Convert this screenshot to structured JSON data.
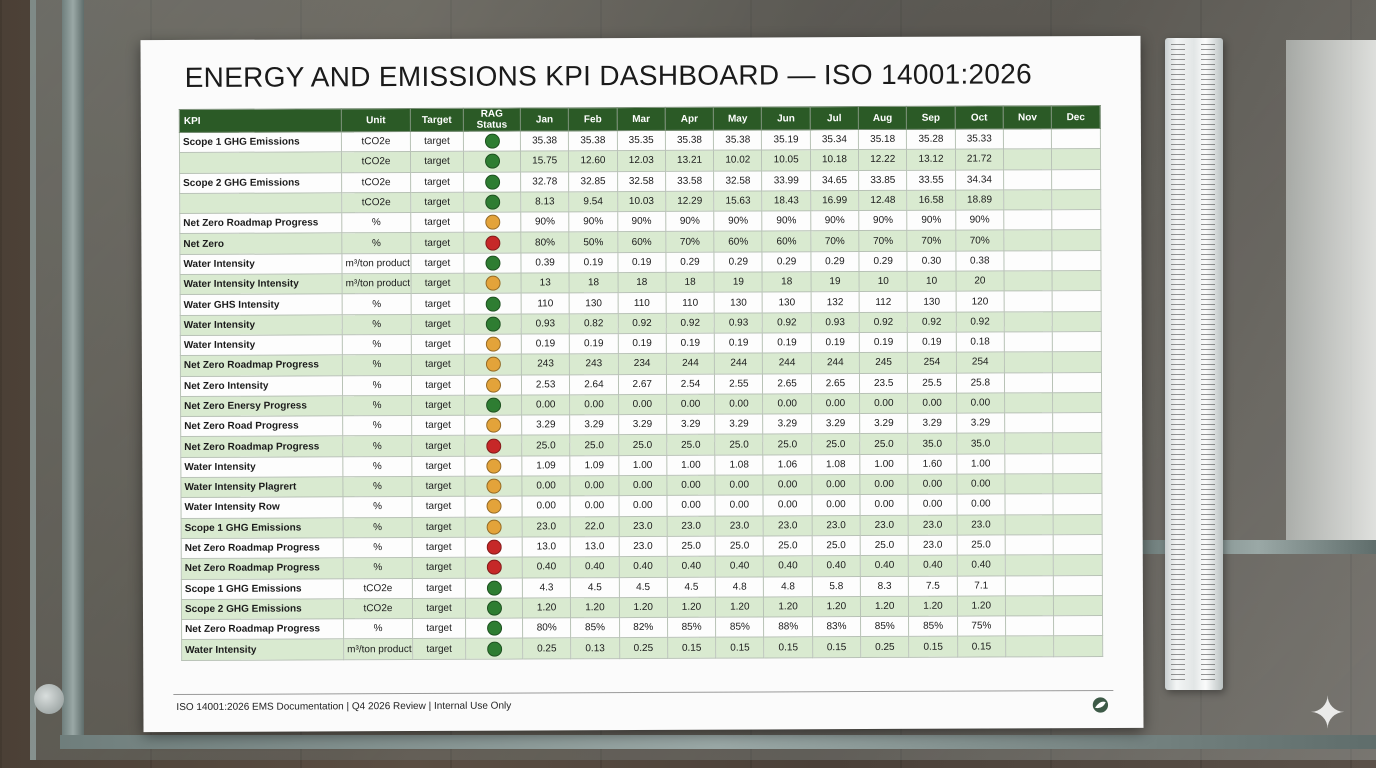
{
  "title": "ENERGY AND EMISSIONS KPI DASHBOARD — ISO 14001:2026",
  "colors": {
    "header": "#2b5a26",
    "green": "#2e7d32",
    "amber": "#e3a33a",
    "red": "#c62828",
    "stripe": "#d9ead0"
  },
  "columns": [
    "KPI",
    "Unit",
    "Target",
    "RAG Status",
    "Jan",
    "Feb",
    "Mar",
    "Apr",
    "May",
    "Jun",
    "Jul",
    "Aug",
    "Sep",
    "Oct",
    "Nov",
    "Dec"
  ],
  "rows": [
    {
      "kpi": "Scope 1 GHG Emissions",
      "unit": "tCO2e",
      "target": "target",
      "rag": "green",
      "values": [
        "35.38",
        "35.38",
        "35.35",
        "35.38",
        "35.38",
        "35.19",
        "35.34",
        "35.18",
        "35.28",
        "35.33",
        "",
        ""
      ]
    },
    {
      "kpi": "",
      "unit": "tCO2e",
      "target": "target",
      "rag": "green",
      "values": [
        "15.75",
        "12.60",
        "12.03",
        "13.21",
        "10.02",
        "10.05",
        "10.18",
        "12.22",
        "13.12",
        "21.72",
        "",
        ""
      ]
    },
    {
      "kpi": "Scope 2 GHG Emissions",
      "unit": "tCO2e",
      "target": "target",
      "rag": "green",
      "values": [
        "32.78",
        "32.85",
        "32.58",
        "33.58",
        "32.58",
        "33.99",
        "34.65",
        "33.85",
        "33.55",
        "34.34",
        "",
        ""
      ]
    },
    {
      "kpi": "",
      "unit": "tCO2e",
      "target": "target",
      "rag": "green",
      "values": [
        "8.13",
        "9.54",
        "10.03",
        "12.29",
        "15.63",
        "18.43",
        "16.99",
        "12.48",
        "16.58",
        "18.89",
        "",
        ""
      ]
    },
    {
      "kpi": "Net Zero Roadmap Progress",
      "unit": "%",
      "target": "target",
      "rag": "amber",
      "values": [
        "90%",
        "90%",
        "90%",
        "90%",
        "90%",
        "90%",
        "90%",
        "90%",
        "90%",
        "90%",
        "",
        ""
      ]
    },
    {
      "kpi": "Net Zero",
      "unit": "%",
      "target": "target",
      "rag": "red",
      "values": [
        "80%",
        "50%",
        "60%",
        "70%",
        "60%",
        "60%",
        "70%",
        "70%",
        "70%",
        "70%",
        "",
        ""
      ]
    },
    {
      "kpi": "Water Intensity",
      "unit": "m³/ton product",
      "target": "target",
      "rag": "green",
      "values": [
        "0.39",
        "0.19",
        "0.19",
        "0.29",
        "0.29",
        "0.29",
        "0.29",
        "0.29",
        "0.30",
        "0.38",
        "",
        ""
      ]
    },
    {
      "kpi": "Water Intensity Intensity",
      "unit": "m³/ton product",
      "target": "target",
      "rag": "amber",
      "values": [
        "13",
        "18",
        "18",
        "18",
        "19",
        "18",
        "19",
        "10",
        "10",
        "20",
        "",
        ""
      ]
    },
    {
      "kpi": "Water GHS Intensity",
      "unit": "%",
      "target": "target",
      "rag": "green",
      "values": [
        "110",
        "130",
        "110",
        "110",
        "130",
        "130",
        "132",
        "112",
        "130",
        "120",
        "",
        ""
      ]
    },
    {
      "kpi": "Water Intensity",
      "unit": "%",
      "target": "target",
      "rag": "green",
      "values": [
        "0.93",
        "0.82",
        "0.92",
        "0.92",
        "0.93",
        "0.92",
        "0.93",
        "0.92",
        "0.92",
        "0.92",
        "",
        ""
      ]
    },
    {
      "kpi": "Water Intensity",
      "unit": "%",
      "target": "target",
      "rag": "amber",
      "values": [
        "0.19",
        "0.19",
        "0.19",
        "0.19",
        "0.19",
        "0.19",
        "0.19",
        "0.19",
        "0.19",
        "0.18",
        "",
        ""
      ]
    },
    {
      "kpi": "Net Zero Roadmap Progress",
      "unit": "%",
      "target": "target",
      "rag": "amber",
      "values": [
        "243",
        "243",
        "234",
        "244",
        "244",
        "244",
        "244",
        "245",
        "254",
        "254",
        "",
        ""
      ]
    },
    {
      "kpi": "Net Zero Intensity",
      "unit": "%",
      "target": "target",
      "rag": "amber",
      "values": [
        "2.53",
        "2.64",
        "2.67",
        "2.54",
        "2.55",
        "2.65",
        "2.65",
        "23.5",
        "25.5",
        "25.8",
        "",
        ""
      ]
    },
    {
      "kpi": "Net Zero Enersy Progress",
      "unit": "%",
      "target": "target",
      "rag": "green",
      "values": [
        "0.00",
        "0.00",
        "0.00",
        "0.00",
        "0.00",
        "0.00",
        "0.00",
        "0.00",
        "0.00",
        "0.00",
        "",
        ""
      ]
    },
    {
      "kpi": "Net Zero Road Progress",
      "unit": "%",
      "target": "target",
      "rag": "amber",
      "values": [
        "3.29",
        "3.29",
        "3.29",
        "3.29",
        "3.29",
        "3.29",
        "3.29",
        "3.29",
        "3.29",
        "3.29",
        "",
        ""
      ]
    },
    {
      "kpi": "Net Zero Roadmap Progress",
      "unit": "%",
      "target": "target",
      "rag": "red",
      "values": [
        "25.0",
        "25.0",
        "25.0",
        "25.0",
        "25.0",
        "25.0",
        "25.0",
        "25.0",
        "35.0",
        "35.0",
        "",
        ""
      ]
    },
    {
      "kpi": "Water Intensity",
      "unit": "%",
      "target": "target",
      "rag": "amber",
      "values": [
        "1.09",
        "1.09",
        "1.00",
        "1.00",
        "1.08",
        "1.06",
        "1.08",
        "1.00",
        "1.60",
        "1.00",
        "",
        ""
      ]
    },
    {
      "kpi": "Water Intensity Plagrert",
      "unit": "%",
      "target": "target",
      "rag": "amber",
      "values": [
        "0.00",
        "0.00",
        "0.00",
        "0.00",
        "0.00",
        "0.00",
        "0.00",
        "0.00",
        "0.00",
        "0.00",
        "",
        ""
      ]
    },
    {
      "kpi": "Water Intensity Row",
      "unit": "%",
      "target": "target",
      "rag": "amber",
      "values": [
        "0.00",
        "0.00",
        "0.00",
        "0.00",
        "0.00",
        "0.00",
        "0.00",
        "0.00",
        "0.00",
        "0.00",
        "",
        ""
      ]
    },
    {
      "kpi": "Scope 1 GHG Emissions",
      "unit": "%",
      "target": "target",
      "rag": "amber",
      "values": [
        "23.0",
        "22.0",
        "23.0",
        "23.0",
        "23.0",
        "23.0",
        "23.0",
        "23.0",
        "23.0",
        "23.0",
        "",
        ""
      ]
    },
    {
      "kpi": "Net Zero Roadmap Progress",
      "unit": "%",
      "target": "target",
      "rag": "red",
      "values": [
        "13.0",
        "13.0",
        "23.0",
        "25.0",
        "25.0",
        "25.0",
        "25.0",
        "25.0",
        "23.0",
        "25.0",
        "",
        ""
      ]
    },
    {
      "kpi": "Net Zero Roadmap Progress",
      "unit": "%",
      "target": "target",
      "rag": "red",
      "values": [
        "0.40",
        "0.40",
        "0.40",
        "0.40",
        "0.40",
        "0.40",
        "0.40",
        "0.40",
        "0.40",
        "0.40",
        "",
        ""
      ]
    },
    {
      "kpi": "Scope 1 GHG Emissions",
      "unit": "tCO2e",
      "target": "target",
      "rag": "green",
      "values": [
        "4.3",
        "4.5",
        "4.5",
        "4.5",
        "4.8",
        "4.8",
        "5.8",
        "8.3",
        "7.5",
        "7.1",
        "",
        ""
      ]
    },
    {
      "kpi": "Scope 2 GHG Emissions",
      "unit": "tCO2e",
      "target": "target",
      "rag": "green",
      "values": [
        "1.20",
        "1.20",
        "1.20",
        "1.20",
        "1.20",
        "1.20",
        "1.20",
        "1.20",
        "1.20",
        "1.20",
        "",
        ""
      ]
    },
    {
      "kpi": "Net Zero Roadmap Progress",
      "unit": "%",
      "target": "target",
      "rag": "green",
      "values": [
        "80%",
        "85%",
        "82%",
        "85%",
        "85%",
        "88%",
        "83%",
        "85%",
        "85%",
        "75%",
        "",
        ""
      ]
    },
    {
      "kpi": "Water Intensity",
      "unit": "m³/ton product",
      "target": "target",
      "rag": "green",
      "values": [
        "0.25",
        "0.13",
        "0.25",
        "0.15",
        "0.15",
        "0.15",
        "0.15",
        "0.25",
        "0.15",
        "0.15",
        "",
        ""
      ]
    }
  ],
  "footer": "ISO 14001:2026 EMS Documentation | Q4 2026 Review | Internal Use Only",
  "footer_logo_icon": "leaf-circle-icon"
}
